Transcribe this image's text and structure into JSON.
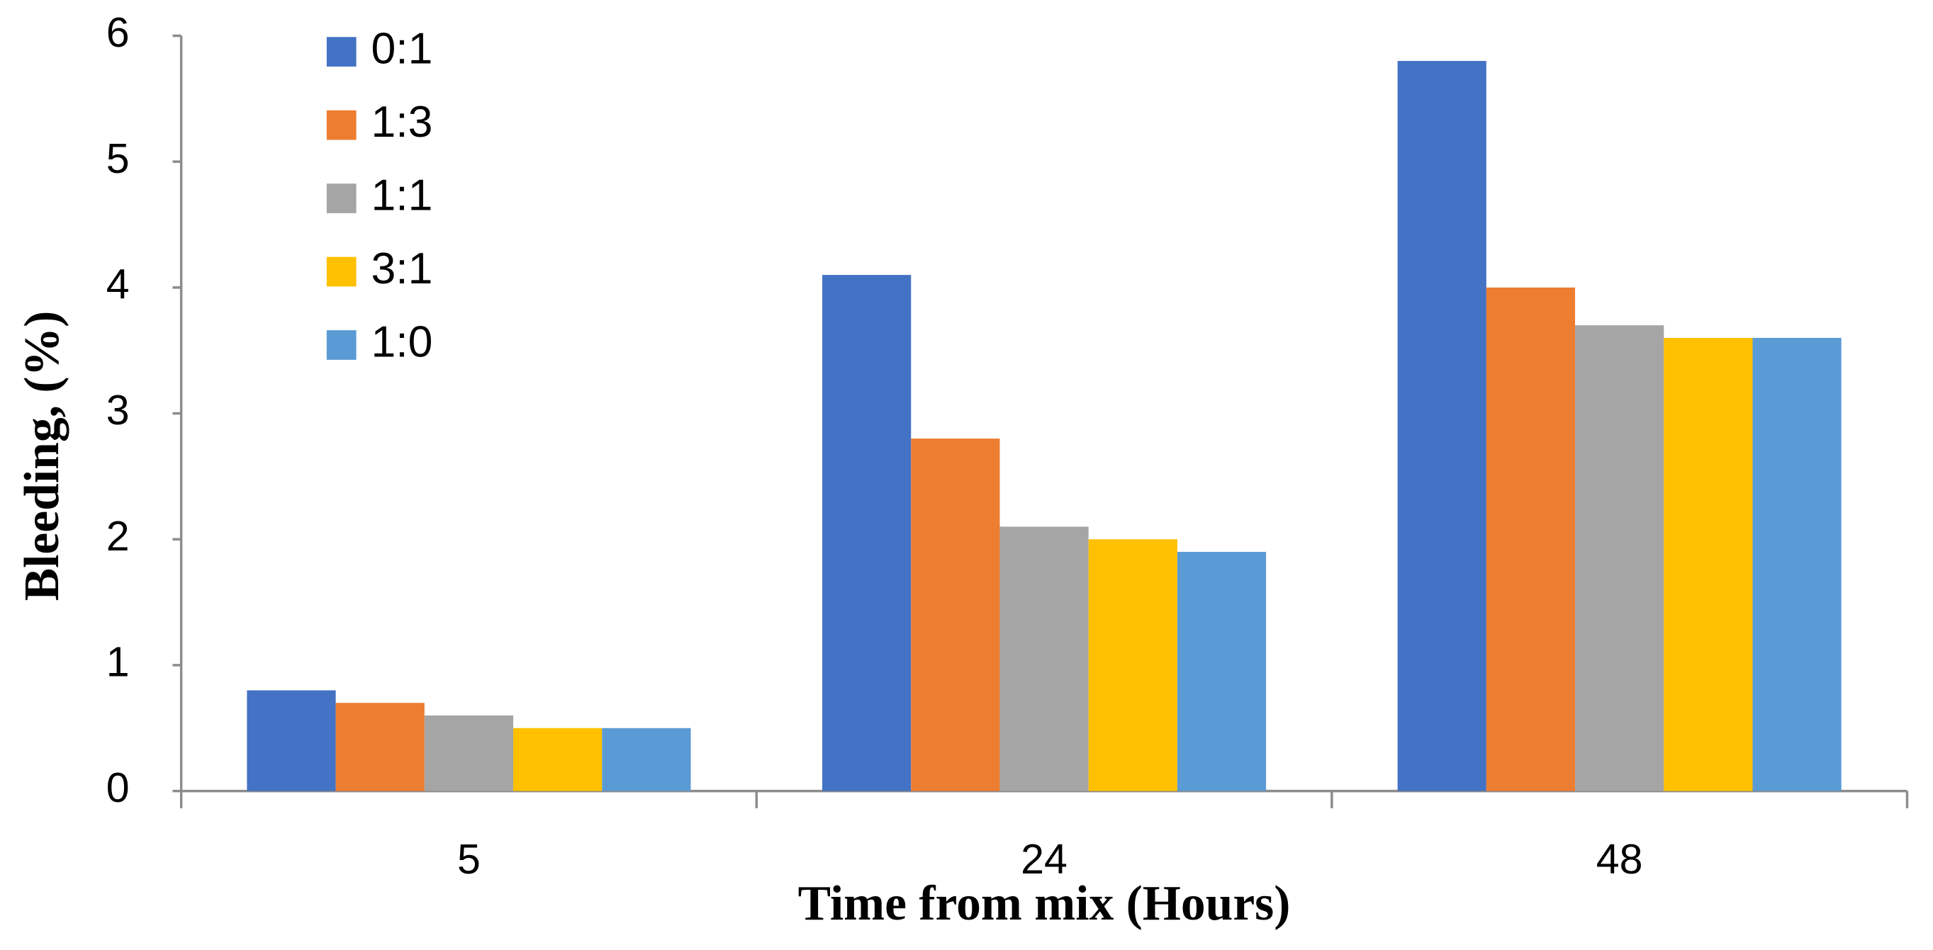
{
  "chart_data": {
    "type": "bar",
    "x_label": "Time from mix (Hours)",
    "y_label": "Bleeding, (%)",
    "categories": [
      "5",
      "24",
      "48"
    ],
    "series": [
      {
        "name": "0:1",
        "color": "#4472c4",
        "values": [
          0.8,
          4.1,
          5.8
        ]
      },
      {
        "name": "1:3",
        "color": "#ed7d31",
        "values": [
          0.7,
          2.8,
          4.0
        ]
      },
      {
        "name": "1:1",
        "color": "#a5a5a5",
        "values": [
          0.6,
          2.1,
          3.7
        ]
      },
      {
        "name": "3:1",
        "color": "#ffc000",
        "values": [
          0.5,
          2.0,
          3.6
        ]
      },
      {
        "name": "1:0",
        "color": "#5b9bd5",
        "values": [
          0.5,
          1.9,
          3.6
        ]
      }
    ],
    "ylim": [
      0,
      6
    ],
    "yticks": [
      0,
      1,
      2,
      3,
      4,
      5,
      6
    ],
    "grid": false,
    "legend": "upper left"
  }
}
